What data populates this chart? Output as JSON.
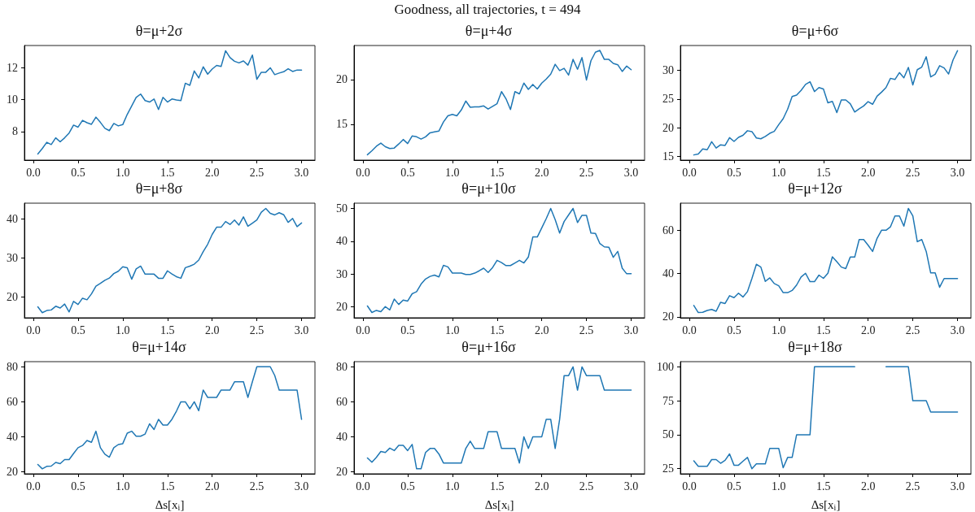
{
  "chart_data": [
    {
      "type": "line",
      "title": "θ=μ+2σ",
      "annotations": [
        "Goodness, all trajectories, t = 494"
      ],
      "x": [
        0.05,
        0.1,
        0.15,
        0.2,
        0.25,
        0.3,
        0.35,
        0.4,
        0.45,
        0.5,
        0.55,
        0.6,
        0.65,
        0.7,
        0.75,
        0.8,
        0.85,
        0.9,
        0.95,
        1,
        1.05,
        1.1,
        1.15,
        1.2,
        1.25,
        1.3,
        1.35,
        1.4,
        1.45,
        1.5,
        1.55,
        1.6,
        1.65,
        1.7,
        1.75,
        1.8,
        1.85,
        1.9,
        1.95,
        2,
        2.05,
        2.1,
        2.15,
        2.2,
        2.25,
        2.3,
        2.35,
        2.4,
        2.45,
        2.5,
        2.55,
        2.6,
        2.65,
        2.7,
        2.75,
        2.8,
        2.85,
        2.9,
        2.95,
        3
      ],
      "series": [
        {
          "color": "#1f77b4",
          "values": [
            6.58,
            6.93,
            7.32,
            7.18,
            7.6,
            7.35,
            7.6,
            7.9,
            8.4,
            8.27,
            8.7,
            8.55,
            8.45,
            8.9,
            8.57,
            8.2,
            8.05,
            8.5,
            8.35,
            8.43,
            9.07,
            9.6,
            10.14,
            10.35,
            9.94,
            9.85,
            10.04,
            9.38,
            10.14,
            9.85,
            10.04,
            9.98,
            9.94,
            11.03,
            10.9,
            11.8,
            11.36,
            12.06,
            11.6,
            11.92,
            12.15,
            12.08,
            13.07,
            12.64,
            12.41,
            12.31,
            12.43,
            12.17,
            12.8,
            11.28,
            11.72,
            11.72,
            12.0,
            11.57,
            11.67,
            11.75,
            11.94,
            11.77,
            11.86,
            11.86
          ]
        }
      ],
      "xlim": [
        -0.1,
        3.15
      ],
      "xticks": [
        {
          "value": 0,
          "label": "0.0"
        },
        0.5,
        {
          "value": 1,
          "label": "1.0"
        },
        1.5,
        {
          "value": 2,
          "label": "2.0"
        },
        2.5,
        {
          "value": 3,
          "label": "3.0"
        }
      ],
      "ylim": [
        6.2,
        13.4
      ],
      "yticks": [
        8,
        10,
        12
      ]
    },
    {
      "type": "line",
      "title": "θ=μ+4σ",
      "x": [
        0.05,
        0.1,
        0.15,
        0.2,
        0.25,
        0.3,
        0.35,
        0.4,
        0.45,
        0.5,
        0.55,
        0.6,
        0.65,
        0.7,
        0.75,
        0.8,
        0.85,
        0.9,
        0.95,
        1,
        1.05,
        1.1,
        1.15,
        1.2,
        1.25,
        1.3,
        1.35,
        1.4,
        1.45,
        1.5,
        1.55,
        1.6,
        1.65,
        1.7,
        1.75,
        1.8,
        1.85,
        1.9,
        1.95,
        2,
        2.05,
        2.1,
        2.15,
        2.2,
        2.25,
        2.3,
        2.35,
        2.4,
        2.45,
        2.5,
        2.55,
        2.6,
        2.65,
        2.7,
        2.75,
        2.8,
        2.85,
        2.9,
        2.95,
        3
      ],
      "series": [
        {
          "color": "#1f77b4",
          "values": [
            11.6,
            12.05,
            12.55,
            12.9,
            12.5,
            12.3,
            12.35,
            12.8,
            13.3,
            12.85,
            13.7,
            13.6,
            13.35,
            13.6,
            14.05,
            14.15,
            14.25,
            15.25,
            15.95,
            16.1,
            15.95,
            16.6,
            17.6,
            16.9,
            16.95,
            16.95,
            17.05,
            16.7,
            17.0,
            17.3,
            18.65,
            17.85,
            16.65,
            18.65,
            18.4,
            19.6,
            18.9,
            19.45,
            18.95,
            19.6,
            20.05,
            20.6,
            21.7,
            21.0,
            21.25,
            20.5,
            22.25,
            21.15,
            22.45,
            19.95,
            22.1,
            23.05,
            23.25,
            22.25,
            22.25,
            21.8,
            21.65,
            20.9,
            21.5,
            21.1
          ]
        }
      ],
      "xlim": [
        -0.1,
        3.15
      ],
      "xticks": [
        {
          "value": 0,
          "label": "0.0"
        },
        0.5,
        {
          "value": 1,
          "label": "1.0"
        },
        1.5,
        {
          "value": 2,
          "label": "2.0"
        },
        2.5,
        {
          "value": 3,
          "label": "3.0"
        }
      ],
      "ylim": [
        11.0,
        23.8
      ],
      "yticks": [
        15,
        20
      ]
    },
    {
      "type": "line",
      "title": "θ=μ+6σ",
      "x": [
        0.05,
        0.1,
        0.15,
        0.2,
        0.25,
        0.3,
        0.35,
        0.4,
        0.45,
        0.5,
        0.55,
        0.6,
        0.65,
        0.7,
        0.75,
        0.8,
        0.85,
        0.9,
        0.95,
        1,
        1.05,
        1.1,
        1.15,
        1.2,
        1.25,
        1.3,
        1.35,
        1.4,
        1.45,
        1.5,
        1.55,
        1.6,
        1.65,
        1.7,
        1.75,
        1.8,
        1.85,
        1.9,
        1.95,
        2,
        2.05,
        2.1,
        2.15,
        2.2,
        2.25,
        2.3,
        2.35,
        2.4,
        2.45,
        2.5,
        2.55,
        2.6,
        2.65,
        2.7,
        2.75,
        2.8,
        2.85,
        2.9,
        2.95,
        3
      ],
      "series": [
        {
          "color": "#1f77b4",
          "values": [
            15.3,
            15.45,
            16.35,
            16.2,
            17.6,
            16.5,
            17.05,
            16.95,
            18.3,
            17.65,
            18.35,
            18.7,
            19.5,
            19.35,
            18.25,
            18.1,
            18.5,
            19.05,
            19.4,
            20.55,
            21.6,
            23.25,
            25.45,
            25.7,
            26.5,
            27.55,
            28.0,
            26.3,
            27.0,
            26.75,
            24.35,
            24.6,
            22.65,
            24.85,
            24.85,
            24.2,
            22.75,
            23.3,
            23.8,
            24.55,
            24.1,
            25.5,
            26.2,
            27.0,
            28.6,
            28.4,
            29.6,
            28.7,
            30.5,
            27.45,
            30.1,
            30.55,
            32.35,
            28.85,
            29.3,
            30.8,
            30.4,
            29.35,
            31.8,
            33.4
          ]
        }
      ],
      "xlim": [
        -0.1,
        3.15
      ],
      "xticks": [
        {
          "value": 0,
          "label": "0.0"
        },
        0.5,
        {
          "value": 1,
          "label": "1.0"
        },
        1.5,
        {
          "value": 2,
          "label": "2.0"
        },
        2.5,
        {
          "value": 3,
          "label": "3.0"
        }
      ],
      "ylim": [
        14.4,
        34.3
      ],
      "yticks": [
        15,
        20,
        25,
        30
      ]
    },
    {
      "type": "line",
      "title": "θ=μ+8σ",
      "x": [
        0.05,
        0.1,
        0.15,
        0.2,
        0.25,
        0.3,
        0.35,
        0.4,
        0.45,
        0.5,
        0.55,
        0.6,
        0.65,
        0.7,
        0.75,
        0.8,
        0.85,
        0.9,
        0.95,
        1,
        1.05,
        1.1,
        1.15,
        1.2,
        1.25,
        1.3,
        1.35,
        1.4,
        1.45,
        1.5,
        1.55,
        1.6,
        1.65,
        1.7,
        1.75,
        1.8,
        1.85,
        1.9,
        1.95,
        2,
        2.05,
        2.1,
        2.15,
        2.2,
        2.25,
        2.3,
        2.35,
        2.4,
        2.45,
        2.5,
        2.55,
        2.6,
        2.65,
        2.7,
        2.75,
        2.8,
        2.85,
        2.9,
        2.95,
        3
      ],
      "series": [
        {
          "color": "#1f77b4",
          "values": [
            17.5,
            16.0,
            16.55,
            16.7,
            17.65,
            17.2,
            18.2,
            16.2,
            18.9,
            18.1,
            19.7,
            19.3,
            20.8,
            22.8,
            23.5,
            24.3,
            24.85,
            26.0,
            26.6,
            27.75,
            27.5,
            24.55,
            27.2,
            27.9,
            25.85,
            25.85,
            25.85,
            24.8,
            24.8,
            26.7,
            25.9,
            25.2,
            24.8,
            27.5,
            27.9,
            28.4,
            29.45,
            31.6,
            33.5,
            36.0,
            37.85,
            37.85,
            39.3,
            38.55,
            39.7,
            38.4,
            40.5,
            38.1,
            38.9,
            39.7,
            41.7,
            42.65,
            41.4,
            41.0,
            41.55,
            41.05,
            39.1,
            40.1,
            38.0,
            38.95
          ]
        }
      ],
      "xlim": [
        -0.1,
        3.15
      ],
      "xticks": [
        {
          "value": 0,
          "label": "0.0"
        },
        0.5,
        {
          "value": 1,
          "label": "1.0"
        },
        1.5,
        {
          "value": 2,
          "label": "2.0"
        },
        2.5,
        {
          "value": 3,
          "label": "3.0"
        }
      ],
      "ylim": [
        14.7,
        44.0
      ],
      "yticks": [
        20,
        30,
        40
      ]
    },
    {
      "type": "line",
      "title": "θ=μ+10σ",
      "x": [
        0.05,
        0.1,
        0.15,
        0.2,
        0.25,
        0.3,
        0.35,
        0.4,
        0.45,
        0.5,
        0.55,
        0.6,
        0.65,
        0.7,
        0.75,
        0.8,
        0.85,
        0.9,
        0.95,
        1,
        1.05,
        1.1,
        1.15,
        1.2,
        1.25,
        1.3,
        1.35,
        1.4,
        1.45,
        1.5,
        1.55,
        1.6,
        1.65,
        1.7,
        1.75,
        1.8,
        1.85,
        1.9,
        1.95,
        2,
        2.05,
        2.1,
        2.15,
        2.2,
        2.25,
        2.3,
        2.35,
        2.4,
        2.45,
        2.5,
        2.55,
        2.6,
        2.65,
        2.7,
        2.75,
        2.8,
        2.85,
        2.9,
        2.95,
        3
      ],
      "series": [
        {
          "color": "#1f77b4",
          "values": [
            20.3,
            18.3,
            18.95,
            18.55,
            20.1,
            19.1,
            22.4,
            20.75,
            22.1,
            21.8,
            24.0,
            24.65,
            26.95,
            28.5,
            29.3,
            29.7,
            29.15,
            32.65,
            32.2,
            30.3,
            30.3,
            30.3,
            29.9,
            29.9,
            30.3,
            31.0,
            31.8,
            30.5,
            32.0,
            34.2,
            33.5,
            32.6,
            32.6,
            33.4,
            34.2,
            33.4,
            35.2,
            41.3,
            41.3,
            44.1,
            46.9,
            50.0,
            46.6,
            42.5,
            46.0,
            48.0,
            50.0,
            45.7,
            47.9,
            47.9,
            42.5,
            42.4,
            39.3,
            38.3,
            38.2,
            35.1,
            36.9,
            31.8,
            30.1,
            30.1
          ]
        }
      ],
      "xlim": [
        -0.1,
        3.15
      ],
      "xticks": [
        {
          "value": 0,
          "label": "0.0"
        },
        0.5,
        {
          "value": 1,
          "label": "1.0"
        },
        1.5,
        {
          "value": 2,
          "label": "2.0"
        },
        2.5,
        {
          "value": 3,
          "label": "3.0"
        }
      ],
      "ylim": [
        16.7,
        51.6
      ],
      "yticks": [
        20,
        30,
        40,
        50
      ]
    },
    {
      "type": "line",
      "title": "θ=μ+12σ",
      "x": [
        0.05,
        0.1,
        0.15,
        0.2,
        0.25,
        0.3,
        0.35,
        0.4,
        0.45,
        0.5,
        0.55,
        0.6,
        0.65,
        0.7,
        0.75,
        0.8,
        0.85,
        0.9,
        0.95,
        1,
        1.05,
        1.1,
        1.15,
        1.2,
        1.25,
        1.3,
        1.35,
        1.4,
        1.45,
        1.5,
        1.55,
        1.6,
        1.65,
        1.7,
        1.75,
        1.8,
        1.85,
        1.9,
        1.95,
        2,
        2.05,
        2.1,
        2.15,
        2.2,
        2.25,
        2.3,
        2.35,
        2.4,
        2.45,
        2.5,
        2.55,
        2.6,
        2.65,
        2.7,
        2.75,
        2.8,
        2.85,
        2.9,
        2.95,
        3
      ],
      "series": [
        {
          "color": "#1f77b4",
          "values": [
            25.3,
            22.0,
            22.15,
            23.0,
            23.45,
            22.6,
            26.75,
            26.2,
            29.8,
            28.9,
            30.95,
            29.2,
            31.65,
            37.7,
            44.3,
            43.0,
            36.4,
            38.0,
            35.4,
            34.4,
            31.2,
            31.2,
            32.2,
            34.7,
            38.4,
            40.15,
            36.25,
            36.25,
            39.3,
            37.8,
            40.15,
            47.75,
            45.45,
            43.0,
            42.3,
            47.6,
            47.6,
            55.7,
            55.7,
            53.1,
            50.2,
            56.25,
            60.0,
            60.0,
            61.6,
            66.6,
            66.6,
            61.9,
            70.1,
            66.6,
            54.7,
            55.7,
            50.2,
            40.3,
            40.3,
            33.7,
            37.7,
            37.7,
            37.7,
            37.7
          ]
        }
      ],
      "xlim": [
        -0.1,
        3.15
      ],
      "xticks": [
        {
          "value": 0,
          "label": "0.0"
        },
        0.5,
        {
          "value": 1,
          "label": "1.0"
        },
        1.5,
        {
          "value": 2,
          "label": "2.0"
        },
        2.5,
        {
          "value": 3,
          "label": "3.0"
        }
      ],
      "ylim": [
        19.6,
        72.5
      ],
      "yticks": [
        20,
        40,
        60
      ]
    },
    {
      "type": "line",
      "title": "θ=μ+14σ",
      "xlabel": "Δs[x$_{i}$]",
      "x": [
        0.05,
        0.1,
        0.15,
        0.2,
        0.25,
        0.3,
        0.35,
        0.4,
        0.45,
        0.5,
        0.55,
        0.6,
        0.65,
        0.7,
        0.75,
        0.8,
        0.85,
        0.9,
        0.95,
        1,
        1.05,
        1.1,
        1.15,
        1.2,
        1.25,
        1.3,
        1.35,
        1.4,
        1.45,
        1.5,
        1.55,
        1.6,
        1.65,
        1.7,
        1.75,
        1.8,
        1.85,
        1.9,
        1.95,
        2,
        2.05,
        2.1,
        2.15,
        2.2,
        2.25,
        2.3,
        2.35,
        2.4,
        2.45,
        2.5,
        2.55,
        2.6,
        2.65,
        2.7,
        2.75,
        2.8,
        2.85,
        2.9,
        2.95,
        3
      ],
      "series": [
        {
          "color": "#1f77b4",
          "values": [
            24.2,
            21.75,
            23.15,
            23.3,
            25.4,
            24.7,
            27.0,
            27.0,
            30.5,
            33.8,
            35.05,
            37.9,
            36.85,
            43.2,
            33.8,
            30.1,
            28.4,
            33.8,
            35.6,
            36.1,
            42.1,
            43.2,
            40.35,
            40.35,
            41.6,
            47.4,
            44.2,
            50,
            46.7,
            46.7,
            50,
            54.6,
            60,
            60,
            56.0,
            60,
            54.9,
            66.7,
            62.5,
            62.5,
            62.5,
            66.7,
            66.7,
            66.7,
            71.4,
            71.4,
            71.4,
            62.5,
            71.4,
            80,
            80,
            80,
            80,
            75,
            66.7,
            66.7,
            66.7,
            66.7,
            66.7,
            50
          ]
        }
      ],
      "xlim": [
        -0.1,
        3.15
      ],
      "xticks": [
        {
          "value": 0,
          "label": "0.0"
        },
        0.5,
        {
          "value": 1,
          "label": "1.0"
        },
        1.5,
        {
          "value": 2,
          "label": "2.0"
        },
        2.5,
        {
          "value": 3,
          "label": "3.0"
        }
      ],
      "ylim": [
        18.9,
        82.9
      ],
      "yticks": [
        20,
        40,
        60,
        80
      ]
    },
    {
      "type": "line",
      "title": "θ=μ+16σ",
      "xlabel": "Δs[x$_{i}$]",
      "x": [
        0.05,
        0.1,
        0.15,
        0.2,
        0.25,
        0.3,
        0.35,
        0.4,
        0.45,
        0.5,
        0.55,
        0.6,
        0.65,
        0.7,
        0.75,
        0.8,
        0.85,
        0.9,
        0.95,
        1,
        1.05,
        1.1,
        1.15,
        1.2,
        1.25,
        1.3,
        1.35,
        1.4,
        1.45,
        1.5,
        1.55,
        1.6,
        1.65,
        1.7,
        1.75,
        1.8,
        1.85,
        1.9,
        1.95,
        2,
        2.05,
        2.1,
        2.15,
        2.2,
        2.25,
        2.3,
        2.35,
        2.4,
        2.45,
        2.5,
        2.55,
        2.6,
        2.65,
        2.7,
        2.75,
        2.8,
        2.85,
        2.9,
        2.95,
        3
      ],
      "series": [
        {
          "color": "#1f77b4",
          "values": [
            27.9,
            25.4,
            28.2,
            31.6,
            31.0,
            33.5,
            32.1,
            35.1,
            35.1,
            32.1,
            35.6,
            21.7,
            21.7,
            31.0,
            33.3,
            33.3,
            30.1,
            25,
            25,
            25,
            25,
            25,
            33.3,
            37.5,
            33.3,
            33.3,
            33.3,
            42.9,
            42.9,
            42.9,
            33.3,
            33.3,
            33.3,
            33.3,
            25,
            40,
            33.3,
            40,
            40,
            40,
            50,
            50,
            33.3,
            50,
            75,
            75,
            80,
            66.7,
            80,
            75,
            75,
            75,
            75,
            66.7,
            66.7,
            66.7,
            66.7,
            66.7,
            66.7,
            66.7
          ]
        }
      ],
      "xlim": [
        -0.1,
        3.15
      ],
      "xticks": [
        {
          "value": 0,
          "label": "0.0"
        },
        0.5,
        {
          "value": 1,
          "label": "1.0"
        },
        1.5,
        {
          "value": 2,
          "label": "2.0"
        },
        2.5,
        {
          "value": 3,
          "label": "3.0"
        }
      ],
      "ylim": [
        18.8,
        83.0
      ],
      "yticks": [
        20,
        40,
        60,
        80
      ]
    },
    {
      "type": "line",
      "title": "θ=μ+18σ",
      "xlabel": "Δs[x$_{i}$]",
      "x": [
        0.05,
        0.1,
        0.15,
        0.2,
        0.25,
        0.3,
        0.35,
        0.4,
        0.45,
        0.5,
        0.55,
        0.6,
        0.65,
        0.7,
        0.75,
        0.8,
        0.85,
        0.9,
        0.95,
        1,
        1.05,
        1.1,
        1.15,
        1.2,
        1.25,
        1.3,
        1.35,
        1.4,
        1.45,
        1.5,
        1.55,
        1.6,
        1.65,
        1.7,
        1.75,
        1.8,
        1.85,
        1.9,
        1.95,
        2,
        2.05,
        2.1,
        2.15,
        2.2,
        2.25,
        2.3,
        2.35,
        2.4,
        2.45,
        2.5,
        2.55,
        2.6,
        2.65,
        2.7,
        2.75,
        2.8,
        2.85,
        2.9,
        2.95,
        3
      ],
      "series": [
        {
          "color": "#1f77b4",
          "values": [
            30.8,
            26.8,
            26.8,
            26.8,
            31.7,
            31.7,
            29.0,
            31.2,
            35.9,
            27.6,
            27.6,
            30.5,
            33.3,
            25,
            28.6,
            28.6,
            28.6,
            40,
            40,
            40,
            25.7,
            33.3,
            33.3,
            50,
            50,
            50,
            50,
            100,
            100,
            100,
            100,
            100,
            100,
            100,
            100,
            100,
            100,
            null,
            null,
            null,
            null,
            null,
            null,
            100,
            100,
            100,
            100,
            100,
            100,
            75,
            75,
            75,
            75,
            66.7,
            66.7,
            66.7,
            66.7,
            66.7,
            66.7,
            66.7
          ]
        }
      ],
      "xlim": [
        -0.1,
        3.15
      ],
      "xticks": [
        {
          "value": 0,
          "label": "0.0"
        },
        0.5,
        {
          "value": 1,
          "label": "1.0"
        },
        1.5,
        {
          "value": 2,
          "label": "2.0"
        },
        2.5,
        {
          "value": 3,
          "label": "3.0"
        }
      ],
      "ylim": [
        21.25,
        103.75
      ],
      "yticks": [
        25,
        50,
        75,
        100
      ]
    }
  ]
}
